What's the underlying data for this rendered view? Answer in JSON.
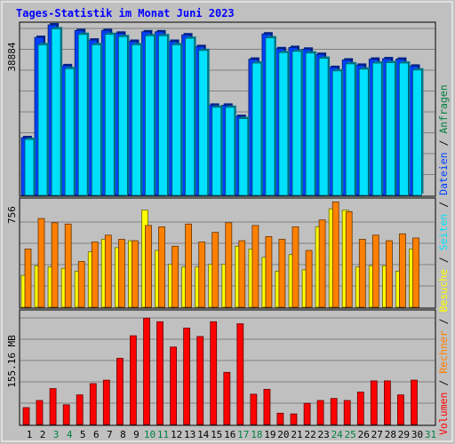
{
  "title": "Tages-Statistik im Monat Juni 2023",
  "side_legend": [
    {
      "text": "Volumen",
      "color": "#ff0000"
    },
    {
      "text": " / ",
      "color": "#000000"
    },
    {
      "text": "Rechner",
      "color": "#ff8000"
    },
    {
      "text": " / ",
      "color": "#000000"
    },
    {
      "text": "Besuche",
      "color": "#ffff00"
    },
    {
      "text": " / ",
      "color": "#000000"
    },
    {
      "text": "Seiten",
      "color": "#00e0ff"
    },
    {
      "text": " / ",
      "color": "#000000"
    },
    {
      "text": "Dateien",
      "color": "#0040ff"
    },
    {
      "text": " / ",
      "color": "#000000"
    },
    {
      "text": "Anfragen",
      "color": "#008040"
    }
  ],
  "colors": {
    "title": "#0000ff",
    "background": "#c0c0c0",
    "weekend_day": "#008040",
    "weekday": "#000000",
    "anfragen": "#0040ff",
    "dateien": "#00e0ff",
    "besuche": "#ffff00",
    "rechner": "#ff8000",
    "volumen": "#ff0000"
  },
  "chart_data": [
    {
      "type": "bar",
      "panel": "requests",
      "ymax_label": "38884",
      "ylim": [
        0,
        38884
      ],
      "categories": [
        "1",
        "2",
        "3",
        "4",
        "5",
        "6",
        "7",
        "8",
        "9",
        "10",
        "11",
        "12",
        "13",
        "14",
        "15",
        "16",
        "17",
        "18",
        "19",
        "20",
        "21",
        "22",
        "23",
        "24",
        "25",
        "26",
        "27",
        "28",
        "29",
        "30"
      ],
      "weekend": [
        "3",
        "4",
        "10",
        "11",
        "17",
        "18",
        "24",
        "25",
        "31"
      ],
      "series": [
        {
          "name": "Anfragen",
          "values": [
            13300,
            36400,
            39300,
            29900,
            38000,
            35800,
            38000,
            37400,
            35500,
            37700,
            37700,
            35500,
            37000,
            34300,
            20800,
            20800,
            18200,
            31400,
            37200,
            33800,
            34100,
            33700,
            32500,
            29500,
            31200,
            30000,
            31400,
            31500,
            31400,
            29800
          ]
        },
        {
          "name": "Dateien",
          "values": [
            12900,
            34700,
            38400,
            29200,
            37100,
            34700,
            37100,
            36600,
            34700,
            36800,
            36800,
            34700,
            36200,
            33400,
            20300,
            20300,
            17700,
            30500,
            36300,
            32900,
            33200,
            32800,
            31600,
            28700,
            30300,
            29100,
            30500,
            30600,
            30500,
            28900
          ]
        }
      ]
    },
    {
      "type": "bar",
      "panel": "visits",
      "ymax_label": "756",
      "ylim": [
        0,
        756
      ],
      "categories": [
        "1",
        "2",
        "3",
        "4",
        "5",
        "6",
        "7",
        "8",
        "9",
        "10",
        "11",
        "12",
        "13",
        "14",
        "15",
        "16",
        "17",
        "18",
        "19",
        "20",
        "21",
        "22",
        "23",
        "24",
        "25",
        "26",
        "27",
        "28",
        "29",
        "30"
      ],
      "series": [
        {
          "name": "Besuche",
          "values": [
            230,
            300,
            290,
            280,
            260,
            400,
            490,
            430,
            480,
            700,
            410,
            310,
            290,
            290,
            310,
            310,
            440,
            420,
            360,
            260,
            380,
            270,
            580,
            710,
            700,
            290,
            300,
            300,
            260,
            420
          ]
        },
        {
          "name": "Rechner",
          "values": [
            420,
            640,
            610,
            600,
            330,
            470,
            520,
            490,
            480,
            590,
            580,
            440,
            600,
            470,
            540,
            610,
            480,
            590,
            510,
            490,
            580,
            410,
            630,
            760,
            690,
            490,
            520,
            480,
            530,
            500
          ]
        }
      ]
    },
    {
      "type": "bar",
      "panel": "volume",
      "ymax_label": "155.16 MB",
      "ylim": [
        0,
        155.16
      ],
      "categories": [
        "1",
        "2",
        "3",
        "4",
        "5",
        "6",
        "7",
        "8",
        "9",
        "10",
        "11",
        "12",
        "13",
        "14",
        "15",
        "16",
        "17",
        "18",
        "19",
        "20",
        "21",
        "22",
        "23",
        "24",
        "25",
        "26",
        "27",
        "28",
        "29",
        "30"
      ],
      "series": [
        {
          "name": "Volumen",
          "values": [
            24,
            34,
            51,
            28,
            42,
            58,
            63,
            94,
            126,
            151,
            146,
            110,
            137,
            125,
            146,
            74,
            143,
            43,
            50,
            16,
            15,
            30,
            34,
            37,
            34,
            46,
            62,
            62,
            42,
            63
          ]
        }
      ]
    }
  ],
  "x_labels": [
    "1",
    "2",
    "3",
    "4",
    "5",
    "6",
    "7",
    "8",
    "9",
    "10",
    "11",
    "12",
    "13",
    "14",
    "15",
    "16",
    "17",
    "18",
    "19",
    "20",
    "21",
    "22",
    "23",
    "24",
    "25",
    "26",
    "27",
    "28",
    "29",
    "30",
    "31"
  ]
}
